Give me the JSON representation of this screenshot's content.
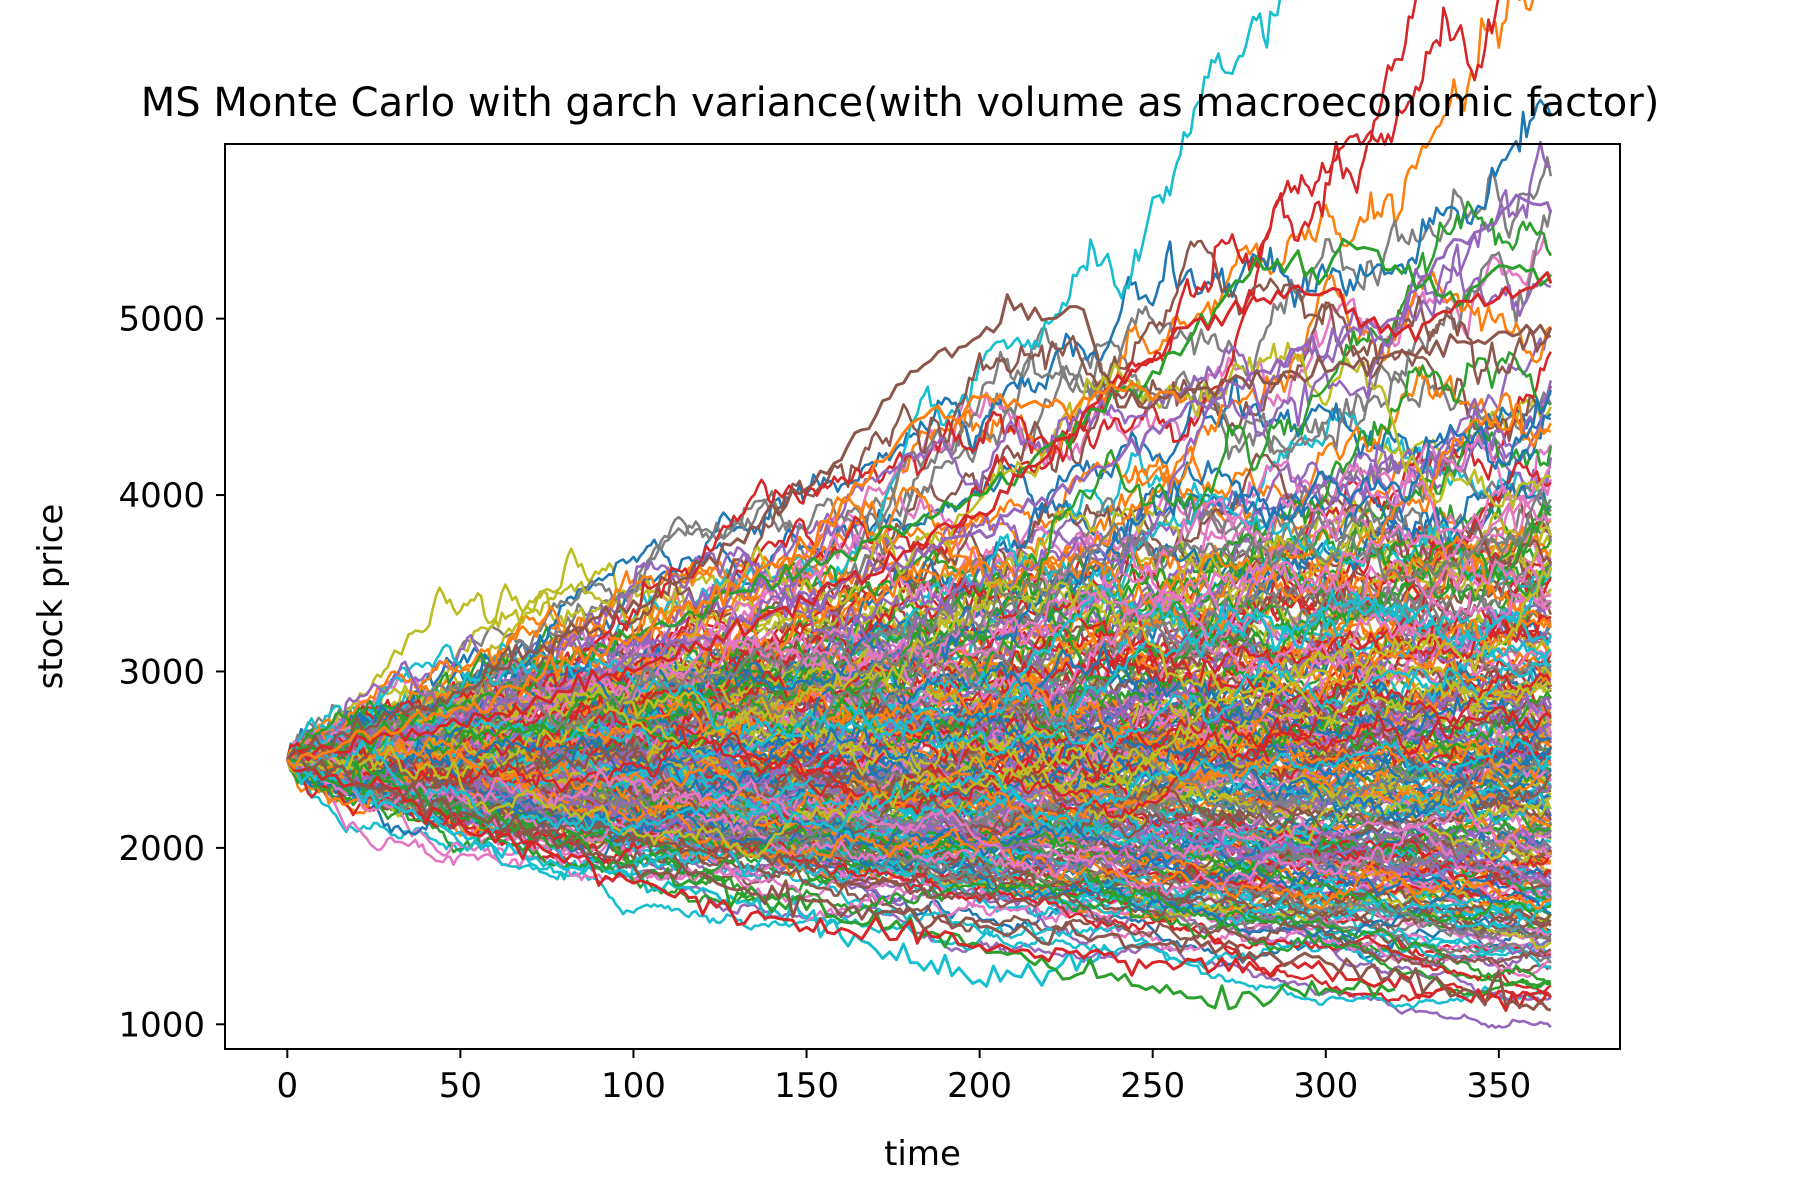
{
  "chart_data": {
    "type": "line",
    "title": "MS Monte Carlo with  garch variance(with volume as macroeconomic factor)",
    "xlabel": "time",
    "ylabel": "stock price",
    "xlim": [
      -18,
      385
    ],
    "ylim": [
      860,
      5990
    ],
    "xticks": [
      0,
      50,
      100,
      150,
      200,
      250,
      300,
      350
    ],
    "yticks": [
      1000,
      2000,
      3000,
      4000,
      5000
    ],
    "x_range": [
      0,
      365
    ],
    "start_value": 2500,
    "n_paths_drawn": 300,
    "grid": false,
    "legend": "none",
    "colors": [
      "#1f77b4",
      "#ff7f0e",
      "#2ca02c",
      "#d62728",
      "#9467bd",
      "#8c564b",
      "#e377c2",
      "#7f7f7f",
      "#bcbd22",
      "#17becf"
    ],
    "notable_series": [
      {
        "color": "#9467bd",
        "x": [
          0,
          40,
          80,
          120,
          160,
          200,
          240,
          280,
          320,
          335,
          345,
          355,
          360,
          365
        ],
        "values": [
          2500,
          2700,
          2900,
          3200,
          3500,
          3800,
          4200,
          4700,
          5000,
          5400,
          5500,
          5700,
          5650,
          5600
        ]
      },
      {
        "color": "#2ca02c",
        "x": [
          0,
          50,
          100,
          150,
          200,
          250,
          270,
          280,
          300,
          305,
          320,
          340,
          350,
          365
        ],
        "values": [
          2500,
          2800,
          3200,
          3600,
          4000,
          4700,
          5100,
          5350,
          5250,
          5450,
          5300,
          5100,
          5300,
          5250
        ]
      },
      {
        "color": "#8c564b",
        "x": [
          0,
          40,
          80,
          120,
          160,
          180,
          200,
          210,
          220,
          230,
          235,
          240,
          260,
          300,
          365
        ],
        "values": [
          2500,
          2800,
          3200,
          3600,
          4200,
          4700,
          4900,
          5050,
          5000,
          5050,
          4700,
          4500,
          4600,
          4700,
          4950
        ]
      },
      {
        "color": "#d62728",
        "x": [
          0,
          50,
          100,
          150,
          200,
          245,
          260,
          280,
          300,
          320,
          340,
          365
        ],
        "values": [
          2500,
          2700,
          3000,
          3400,
          3900,
          4700,
          4950,
          5100,
          5150,
          4900,
          5100,
          5200
        ]
      },
      {
        "color": "#17becf",
        "x": [
          0,
          30,
          60,
          100,
          150,
          180,
          200,
          220,
          240
        ],
        "values": [
          2500,
          2250,
          2000,
          1850,
          1600,
          1350,
          1250,
          1300,
          1400
        ]
      },
      {
        "color": "#2ca02c",
        "x": [
          0,
          50,
          100,
          150,
          200,
          240,
          260,
          280,
          300,
          320
        ],
        "values": [
          2500,
          2200,
          1900,
          1650,
          1450,
          1250,
          1150,
          1150,
          1200,
          1200
        ]
      },
      {
        "color": "#d62728",
        "x": [
          0,
          50,
          100,
          150,
          200,
          250,
          300,
          340,
          365
        ],
        "values": [
          2500,
          2150,
          1800,
          1550,
          1450,
          1350,
          1300,
          1150,
          1150
        ]
      },
      {
        "color": "#8c564b",
        "x": [
          0,
          50,
          100,
          150,
          200,
          250,
          300,
          340,
          365
        ],
        "values": [
          2500,
          2200,
          1900,
          1700,
          1550,
          1450,
          1350,
          1200,
          1080
        ]
      },
      {
        "color": "#ff7f0e",
        "x": [
          0,
          50,
          100,
          150,
          180,
          200,
          220,
          240,
          260
        ],
        "values": [
          2500,
          2800,
          3200,
          3700,
          4400,
          4550,
          4500,
          4600,
          4550
        ]
      }
    ]
  }
}
